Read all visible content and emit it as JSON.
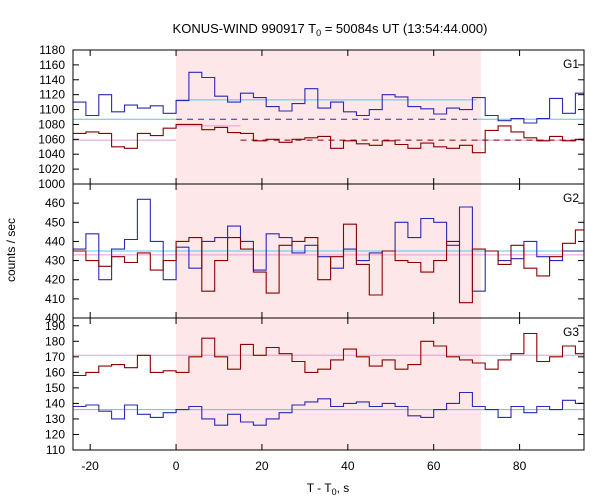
{
  "chart_data": {
    "type": "line",
    "title": "KONUS-WIND 990917 T",
    "title_sub": "0",
    "title_rest": " = 50084s UT (13:54:44.000)",
    "xlabel": "T - T",
    "xlabel_sub": "0",
    "xlabel_rest": ", s",
    "ylabel": "counts / sec",
    "xlim": [
      -24,
      95
    ],
    "xticks": [
      -20,
      0,
      20,
      40,
      60,
      80
    ],
    "shaded_interval": [
      0,
      71
    ],
    "colors": {
      "blue": "#2a2ab4",
      "red": "#8b0000",
      "cyan": "#5fc4e6",
      "pink": "#e89ad0",
      "shade": "#fde7e9"
    },
    "panels": [
      {
        "label": "G1",
        "ylim": [
          1000,
          1180
        ],
        "yticks": [
          1000,
          1020,
          1040,
          1060,
          1080,
          1100,
          1120,
          1140,
          1160,
          1180
        ],
        "x": [
          -24,
          -21,
          -18,
          -15,
          -12,
          -9,
          -6,
          -3,
          0,
          3,
          6,
          9,
          12,
          15,
          18,
          21,
          24,
          27,
          30,
          33,
          36,
          39,
          42,
          45,
          48,
          51,
          54,
          57,
          60,
          63,
          66,
          69,
          72,
          75,
          78,
          81,
          84,
          87,
          90,
          93
        ],
        "series": [
          {
            "color": "blue",
            "values": [
              1110,
              1092,
              1120,
              1097,
              1106,
              1102,
              1105,
              1095,
              1112,
              1150,
              1143,
              1118,
              1110,
              1122,
              1116,
              1104,
              1098,
              1108,
              1128,
              1102,
              1110,
              1097,
              1092,
              1100,
              1120,
              1117,
              1104,
              1101,
              1094,
              1102,
              1100,
              1116,
              1092,
              1085,
              1088,
              1082,
              1088,
              1115,
              1095,
              1122
            ]
          },
          {
            "color": "red",
            "values": [
              1068,
              1070,
              1068,
              1050,
              1048,
              1068,
              1065,
              1075,
              1080,
              1080,
              1073,
              1076,
              1069,
              1068,
              1058,
              1060,
              1056,
              1060,
              1062,
              1064,
              1048,
              1058,
              1054,
              1052,
              1058,
              1053,
              1048,
              1055,
              1050,
              1048,
              1052,
              1042,
              1072,
              1078,
              1070,
              1062,
              1058,
              1064,
              1058,
              1060
            ]
          }
        ],
        "hlines": [
          {
            "color": "cyan",
            "value": 1113,
            "from": 0,
            "to": 70
          },
          {
            "color": "cyan",
            "value": 1087,
            "from": -24,
            "to": 0
          },
          {
            "color": "cyan",
            "value": 1087,
            "from": 70,
            "to": 95
          },
          {
            "color": "blue",
            "value": 1087,
            "from": 0,
            "to": 70,
            "dash": true
          },
          {
            "color": "pink",
            "value": 1078,
            "from": 0,
            "to": 15
          },
          {
            "color": "pink",
            "value": 1059,
            "from": -24,
            "to": 0
          },
          {
            "color": "pink",
            "value": 1059,
            "from": 70,
            "to": 95
          },
          {
            "color": "red",
            "value": 1059,
            "from": 15,
            "to": 95,
            "dash": true
          }
        ]
      },
      {
        "label": "G2",
        "ylim": [
          400,
          470
        ],
        "yticks": [
          400,
          410,
          420,
          430,
          440,
          450,
          460
        ],
        "x": [
          -24,
          -21,
          -18,
          -15,
          -12,
          -9,
          -6,
          -3,
          0,
          3,
          6,
          9,
          12,
          15,
          18,
          21,
          24,
          27,
          30,
          33,
          36,
          39,
          42,
          45,
          48,
          51,
          54,
          57,
          60,
          63,
          66,
          69,
          72,
          75,
          78,
          81,
          84,
          87,
          90,
          93
        ],
        "series": [
          {
            "color": "blue",
            "values": [
              436,
              444,
              420,
              436,
              441,
              462,
              440,
              420,
              437,
              426,
              440,
              442,
              448,
              440,
              425,
              444,
              442,
              434,
              438,
              432,
              426,
              436,
              430,
              434,
              435,
              450,
              442,
              452,
              450,
              438,
              458,
              414,
              435,
              430,
              431,
              440,
              432,
              430,
              435,
              435
            ]
          },
          {
            "color": "red",
            "values": [
              435,
              430,
              427,
              432,
              429,
              434,
              425,
              430,
              440,
              442,
              414,
              430,
              442,
              436,
              424,
              413,
              438,
              440,
              442,
              420,
              432,
              449,
              428,
              412,
              435,
              430,
              429,
              424,
              430,
              440,
              408,
              436,
              435,
              428,
              438,
              426,
              422,
              432,
              439,
              446
            ]
          }
        ],
        "hlines": [
          {
            "color": "cyan",
            "value": 435,
            "from": -24,
            "to": 95
          },
          {
            "color": "pink",
            "value": 433,
            "from": -24,
            "to": 95
          }
        ]
      },
      {
        "label": "G3",
        "ylim": [
          110,
          195
        ],
        "yticks": [
          110,
          120,
          130,
          140,
          150,
          160,
          170,
          180,
          190
        ],
        "x": [
          -24,
          -21,
          -18,
          -15,
          -12,
          -9,
          -6,
          -3,
          0,
          3,
          6,
          9,
          12,
          15,
          18,
          21,
          24,
          27,
          30,
          33,
          36,
          39,
          42,
          45,
          48,
          51,
          54,
          57,
          60,
          63,
          66,
          69,
          72,
          75,
          78,
          81,
          84,
          87,
          90,
          93
        ],
        "series": [
          {
            "color": "blue",
            "values": [
              138,
              139,
              135,
              130,
              139,
              133,
              131,
              134,
              136,
              138,
              130,
              126,
              133,
              128,
              126,
              130,
              134,
              139,
              141,
              143,
              138,
              140,
              141,
              138,
              140,
              138,
              132,
              131,
              136,
              140,
              147,
              138,
              136,
              131,
              138,
              134,
              138,
              136,
              142,
              140
            ]
          },
          {
            "color": "red",
            "values": [
              158,
              160,
              164,
              165,
              163,
              171,
              160,
              161,
              160,
              170,
              182,
              170,
              162,
              178,
              171,
              176,
              172,
              167,
              160,
              162,
              168,
              175,
              170,
              164,
              168,
              162,
              165,
              180,
              177,
              170,
              168,
              166,
              162,
              168,
              172,
              185,
              167,
              170,
              177,
              172
            ]
          }
        ],
        "hlines": [
          {
            "color": "cyan",
            "value": 136,
            "from": -24,
            "to": 95
          },
          {
            "color": "pink",
            "value": 171,
            "from": -24,
            "to": 95
          }
        ]
      }
    ]
  }
}
